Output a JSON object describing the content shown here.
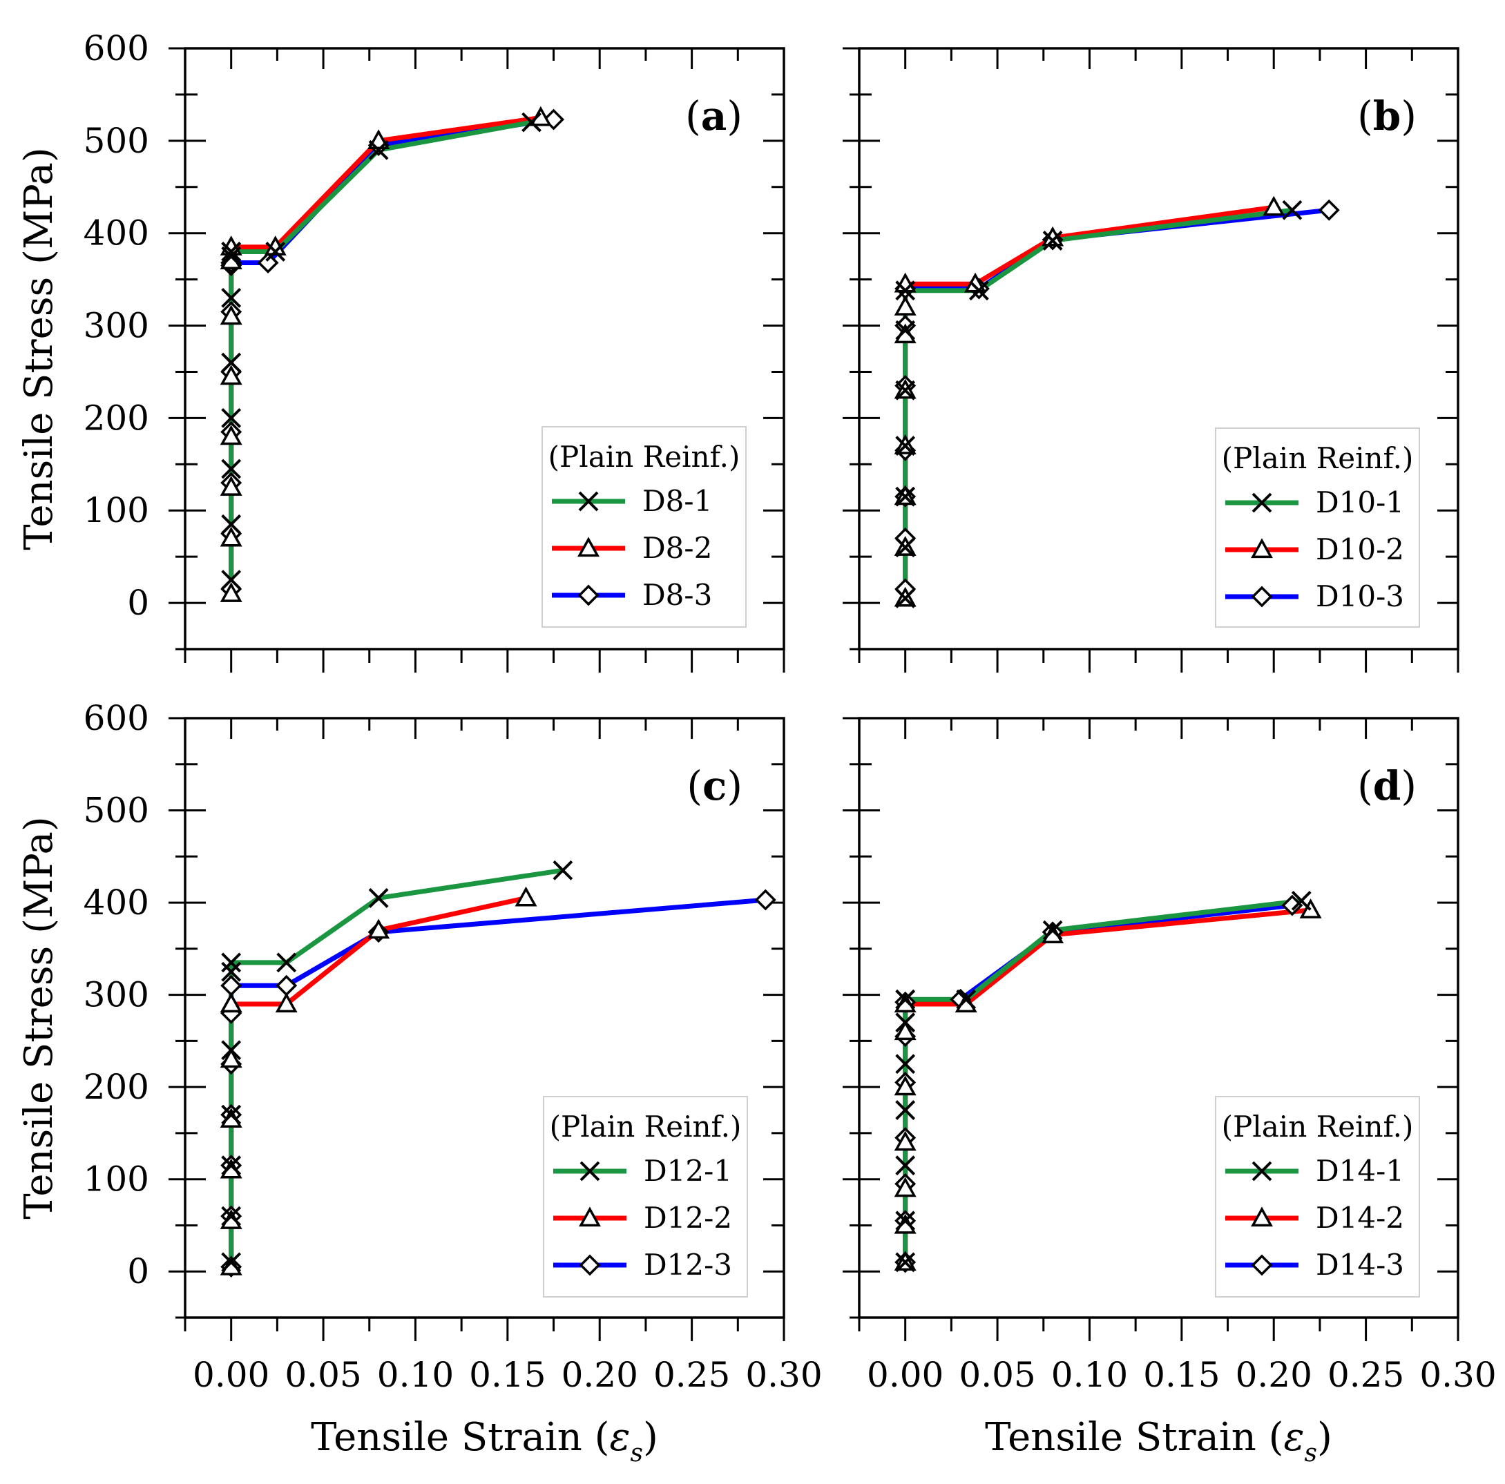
{
  "colors": {
    "series1": "#1a9641",
    "series2": "#ff0000",
    "series3": "#0000ff",
    "axis": "#000000"
  },
  "marker_icons": {
    "series1": "x-marker-icon",
    "series2": "triangle-marker-icon",
    "series3": "diamond-marker-icon"
  },
  "axes": {
    "ylabel": "Tensile Stress (MPa)",
    "xlabel_text": "Tensile Strain (",
    "xlabel_symbol": "ε",
    "xlabel_subscript": "s",
    "xlabel_close": ")",
    "xticks": [
      "0.00",
      "0.05",
      "0.10",
      "0.15",
      "0.20",
      "0.25",
      "0.30"
    ],
    "yticks": [
      "0",
      "100",
      "200",
      "300",
      "400",
      "500",
      "600"
    ]
  },
  "chart_data": [
    {
      "type": "line",
      "panel_label_open": "(",
      "panel_label": "a",
      "panel_label_close": ")",
      "legend_title": "(Plain Reinf.)",
      "xlim": [
        -0.025,
        0.3
      ],
      "ylim": [
        -50,
        600
      ],
      "series": [
        {
          "name": "D8-1",
          "x": [
            0.0,
            0.0,
            0.0,
            0.0,
            0.0,
            0.0,
            0.0,
            0.0,
            0.0,
            0.024,
            0.08,
            0.163
          ],
          "y": [
            25,
            85,
            145,
            200,
            260,
            330,
            375,
            380,
            380,
            380,
            490,
            520
          ]
        },
        {
          "name": "D8-2",
          "x": [
            0.0,
            0.0,
            0.0,
            0.0,
            0.0,
            0.0,
            0.0,
            0.0,
            0.024,
            0.08,
            0.168
          ],
          "y": [
            10,
            70,
            125,
            180,
            245,
            310,
            370,
            385,
            385,
            500,
            525
          ]
        },
        {
          "name": "D8-3",
          "x": [
            0.0,
            0.0,
            0.0,
            0.0,
            0.0,
            0.0,
            0.0,
            0.0,
            0.02,
            0.08,
            0.175
          ],
          "y": [
            15,
            75,
            130,
            185,
            250,
            315,
            365,
            368,
            368,
            495,
            523
          ]
        }
      ]
    },
    {
      "type": "line",
      "panel_label_open": "(",
      "panel_label": "b",
      "panel_label_close": ")",
      "legend_title": "(Plain Reinf.)",
      "xlim": [
        -0.025,
        0.3
      ],
      "ylim": [
        -50,
        600
      ],
      "series": [
        {
          "name": "D10-1",
          "x": [
            0.0,
            0.0,
            0.0,
            0.0,
            0.0,
            0.0,
            0.0,
            0.04,
            0.08,
            0.21
          ],
          "y": [
            5,
            60,
            115,
            170,
            230,
            295,
            338,
            338,
            392,
            425
          ]
        },
        {
          "name": "D10-2",
          "x": [
            0.0,
            0.0,
            0.0,
            0.0,
            0.0,
            0.0,
            0.0,
            0.0,
            0.038,
            0.08,
            0.2
          ],
          "y": [
            5,
            60,
            115,
            170,
            230,
            290,
            320,
            345,
            345,
            395,
            428
          ]
        },
        {
          "name": "D10-3",
          "x": [
            0.0,
            0.0,
            0.0,
            0.0,
            0.0,
            0.0,
            0.0,
            0.04,
            0.08,
            0.23
          ],
          "y": [
            15,
            70,
            115,
            165,
            235,
            300,
            340,
            340,
            393,
            425
          ]
        }
      ]
    },
    {
      "type": "line",
      "panel_label_open": "(",
      "panel_label": "c",
      "panel_label_close": ")",
      "legend_title": "(Plain Reinf.)",
      "xlim": [
        -0.025,
        0.3
      ],
      "ylim": [
        -50,
        600
      ],
      "series": [
        {
          "name": "D12-1",
          "x": [
            0.0,
            0.0,
            0.0,
            0.0,
            0.0,
            0.0,
            0.0,
            0.03,
            0.08,
            0.18
          ],
          "y": [
            10,
            60,
            115,
            170,
            240,
            325,
            335,
            335,
            405,
            435
          ]
        },
        {
          "name": "D12-2",
          "x": [
            0.0,
            0.0,
            0.0,
            0.0,
            0.0,
            0.0,
            0.0,
            0.03,
            0.08,
            0.16
          ],
          "y": [
            5,
            55,
            110,
            165,
            230,
            290,
            290,
            290,
            370,
            405
          ]
        },
        {
          "name": "D12-3",
          "x": [
            0.0,
            0.0,
            0.0,
            0.0,
            0.0,
            0.0,
            0.0,
            0.03,
            0.08,
            0.29
          ],
          "y": [
            5,
            60,
            115,
            170,
            225,
            280,
            310,
            310,
            368,
            403
          ]
        }
      ]
    },
    {
      "type": "line",
      "panel_label_open": "(",
      "panel_label": "d",
      "panel_label_close": ")",
      "legend_title": "(Plain Reinf.)",
      "xlim": [
        -0.025,
        0.3
      ],
      "ylim": [
        -50,
        600
      ],
      "series": [
        {
          "name": "D14-1",
          "x": [
            0.0,
            0.0,
            0.0,
            0.0,
            0.0,
            0.0,
            0.0,
            0.0,
            0.033,
            0.08,
            0.215
          ],
          "y": [
            10,
            55,
            115,
            175,
            225,
            270,
            295,
            295,
            295,
            370,
            402
          ]
        },
        {
          "name": "D14-2",
          "x": [
            0.0,
            0.0,
            0.0,
            0.0,
            0.0,
            0.0,
            0.0,
            0.033,
            0.08,
            0.22
          ],
          "y": [
            10,
            50,
            90,
            140,
            200,
            260,
            290,
            290,
            365,
            392
          ]
        },
        {
          "name": "D14-3",
          "x": [
            0.0,
            0.0,
            0.0,
            0.0,
            0.0,
            0.0,
            0.0,
            0.03,
            0.08,
            0.21
          ],
          "y": [
            10,
            55,
            95,
            145,
            205,
            255,
            292,
            295,
            368,
            397
          ]
        }
      ]
    }
  ]
}
